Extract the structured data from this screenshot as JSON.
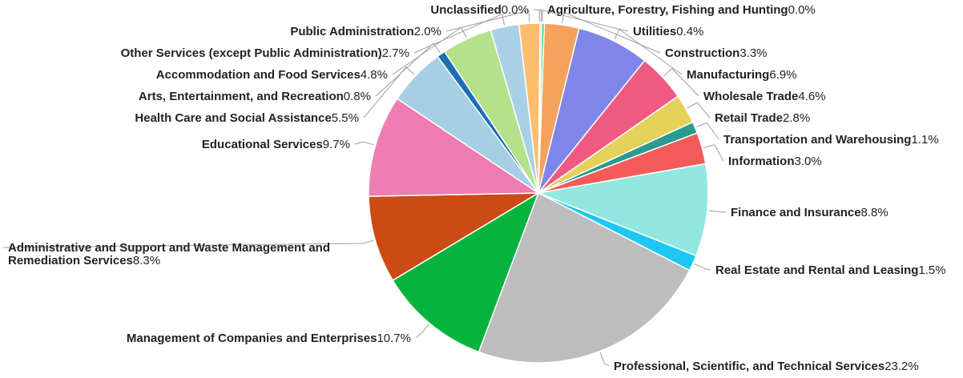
{
  "chart_data": {
    "type": "pie",
    "title": "",
    "slices": [
      {
        "label": "Agriculture, Forestry, Fishing and Hunting",
        "value_label": "0.0%",
        "value": 0.0,
        "color": "#b9d9a9"
      },
      {
        "label": "Utilities",
        "value_label": "0.4%",
        "value": 0.4,
        "color": "#31c76d"
      },
      {
        "label": "Construction",
        "value_label": "3.3%",
        "value": 3.3,
        "color": "#f5a25e"
      },
      {
        "label": "Manufacturing",
        "value_label": "6.9%",
        "value": 6.9,
        "color": "#7f86e9"
      },
      {
        "label": "Wholesale Trade",
        "value_label": "4.6%",
        "value": 4.6,
        "color": "#f05a82"
      },
      {
        "label": "Retail Trade",
        "value_label": "2.8%",
        "value": 2.8,
        "color": "#e5d25a"
      },
      {
        "label": "Transportation and Warehousing",
        "value_label": "1.1%",
        "value": 1.1,
        "color": "#2a9b8f"
      },
      {
        "label": "Information",
        "value_label": "3.0%",
        "value": 3.0,
        "color": "#f35b5b"
      },
      {
        "label": "Finance and Insurance",
        "value_label": "8.8%",
        "value": 8.8,
        "color": "#92e8e0"
      },
      {
        "label": "Real Estate and Rental and Leasing",
        "value_label": "1.5%",
        "value": 1.5,
        "color": "#1ec7f2"
      },
      {
        "label": "Professional, Scientific, and Technical Services",
        "value_label": "23.2%",
        "value": 23.2,
        "color": "#bdbdbd"
      },
      {
        "label": "Management of Companies and Enterprises",
        "value_label": "10.7%",
        "value": 10.7,
        "color": "#06b43d"
      },
      {
        "label": "Administrative and Support and Waste Management and Remediation Services",
        "value_label": "8.3%",
        "value": 8.3,
        "color": "#cb4b14"
      },
      {
        "label": "Educational Services",
        "value_label": "9.7%",
        "value": 9.7,
        "color": "#f07db1"
      },
      {
        "label": "Health Care and Social Assistance",
        "value_label": "5.5%",
        "value": 5.5,
        "color": "#a6cfe3"
      },
      {
        "label": "Arts, Entertainment, and Recreation",
        "value_label": "0.8%",
        "value": 0.8,
        "color": "#1c6eb6"
      },
      {
        "label": "Accommodation and Food Services",
        "value_label": "4.8%",
        "value": 4.8,
        "color": "#b5e08c"
      },
      {
        "label": "Other Services (except Public Administration)",
        "value_label": "2.7%",
        "value": 2.7,
        "color": "#a9d0e4"
      },
      {
        "label": "Public Administration",
        "value_label": "2.0%",
        "value": 2.0,
        "color": "#fdbe6e"
      },
      {
        "label": "Unclassified",
        "value_label": "0.0%",
        "value": 0.0,
        "color": "#d7a7cf"
      }
    ]
  }
}
